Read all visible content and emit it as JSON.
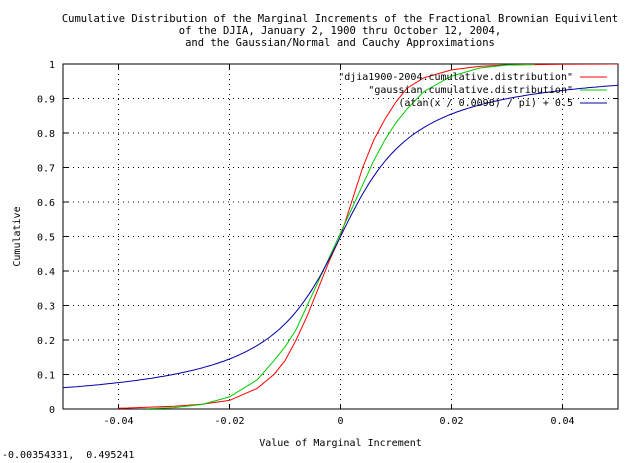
{
  "chart_data": {
    "type": "line",
    "title": [
      "Cumulative Distribution of the Marginal Increments of the Fractional Brownian Equivilent",
      "of the DJIA, January 2, 1900 thru October 12, 2004,",
      "and the Gaussian/Normal and Cauchy Approximations"
    ],
    "xlabel": "Value of Marginal Increment",
    "ylabel": "Cumulative",
    "xlim": [
      -0.05,
      0.05
    ],
    "ylim": [
      0,
      1
    ],
    "x_ticks": [
      -0.04,
      -0.02,
      0,
      0.02,
      0.04
    ],
    "x_tick_labels": [
      "-0.04",
      "-0.02",
      "0",
      "0.02",
      "0.04"
    ],
    "y_ticks": [
      0,
      0.1,
      0.2,
      0.3,
      0.4,
      0.5,
      0.6,
      0.7,
      0.8,
      0.9,
      1
    ],
    "y_tick_labels": [
      "0",
      "0.1",
      "0.2",
      "0.3",
      "0.4",
      "0.5",
      "0.6",
      "0.7",
      "0.8",
      "0.9",
      "1"
    ],
    "grid": true,
    "legend_position": "top-right",
    "series": [
      {
        "name": "\"djia1900-2004.cumulative.distribution\"",
        "color": "#ff0000",
        "x": [
          -0.04,
          -0.03,
          -0.025,
          -0.02,
          -0.015,
          -0.012,
          -0.01,
          -0.008,
          -0.006,
          -0.004,
          -0.002,
          0,
          0.002,
          0.004,
          0.006,
          0.008,
          0.01,
          0.012,
          0.015,
          0.02,
          0.025,
          0.03,
          0.04,
          0.05
        ],
        "y": [
          0.002,
          0.008,
          0.014,
          0.025,
          0.06,
          0.1,
          0.14,
          0.2,
          0.27,
          0.35,
          0.43,
          0.5,
          0.6,
          0.7,
          0.78,
          0.84,
          0.89,
          0.93,
          0.96,
          0.983,
          0.993,
          0.997,
          0.999,
          1.0
        ]
      },
      {
        "name": "\"gaussian.cumulative.distribution\"",
        "color": "#00cc00",
        "x": [
          -0.035,
          -0.03,
          -0.025,
          -0.02,
          -0.015,
          -0.012,
          -0.01,
          -0.008,
          -0.006,
          -0.004,
          -0.002,
          0,
          0.002,
          0.004,
          0.006,
          0.008,
          0.01,
          0.012,
          0.015,
          0.02,
          0.025,
          0.03,
          0.035
        ],
        "y": [
          0.001,
          0.004,
          0.013,
          0.035,
          0.085,
          0.14,
          0.18,
          0.23,
          0.3,
          0.37,
          0.44,
          0.51,
          0.58,
          0.65,
          0.72,
          0.78,
          0.83,
          0.87,
          0.92,
          0.965,
          0.988,
          0.997,
          0.999
        ]
      },
      {
        "name": "(atan(x / 0.0098) / pi) + 0.5",
        "color": "#0000aa",
        "function": "cauchy",
        "scale": 0.0098
      }
    ]
  },
  "status_readout": "-0.00354331,  0.495241"
}
